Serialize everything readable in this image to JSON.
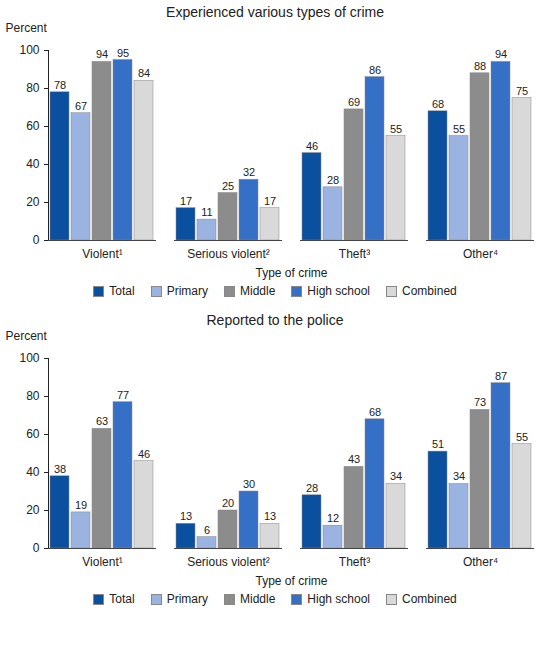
{
  "chart_data": [
    {
      "type": "bar",
      "title": "Experienced various types of crime",
      "x_label": "Type of crime",
      "y_label": "Percent",
      "categories": [
        "Violent¹",
        "Serious violent²",
        "Theft³",
        "Other⁴"
      ],
      "series": [
        {
          "name": "Total",
          "color": "#0b4f9f",
          "values": [
            78,
            17,
            46,
            68
          ]
        },
        {
          "name": "Primary",
          "color": "#9bb3e0",
          "values": [
            67,
            11,
            28,
            55
          ]
        },
        {
          "name": "Middle",
          "color": "#8c8c8c",
          "values": [
            94,
            25,
            69,
            88
          ]
        },
        {
          "name": "High school",
          "color": "#3670c6",
          "values": [
            95,
            32,
            86,
            94
          ]
        },
        {
          "name": "Combined",
          "color": "#d9d9d9",
          "values": [
            84,
            17,
            55,
            75
          ]
        }
      ],
      "ylim": [
        0,
        100
      ],
      "yticks": [
        0,
        20,
        40,
        60,
        80,
        100
      ],
      "grid": false,
      "data_labels": true,
      "legend": "bottom"
    },
    {
      "type": "bar",
      "title": "Reported to the police",
      "x_label": "Type of crime",
      "y_label": "Percent",
      "categories": [
        "Violent¹",
        "Serious violent²",
        "Theft³",
        "Other⁴"
      ],
      "series": [
        {
          "name": "Total",
          "color": "#0b4f9f",
          "values": [
            38,
            13,
            28,
            51
          ]
        },
        {
          "name": "Primary",
          "color": "#9bb3e0",
          "values": [
            19,
            6,
            12,
            34
          ]
        },
        {
          "name": "Middle",
          "color": "#8c8c8c",
          "values": [
            63,
            20,
            43,
            73
          ]
        },
        {
          "name": "High school",
          "color": "#3670c6",
          "values": [
            77,
            30,
            68,
            87
          ]
        },
        {
          "name": "Combined",
          "color": "#d9d9d9",
          "values": [
            46,
            13,
            34,
            55
          ]
        }
      ],
      "ylim": [
        0,
        100
      ],
      "yticks": [
        0,
        20,
        40,
        60,
        80,
        100
      ],
      "grid": false,
      "data_labels": true,
      "legend": "bottom"
    }
  ]
}
